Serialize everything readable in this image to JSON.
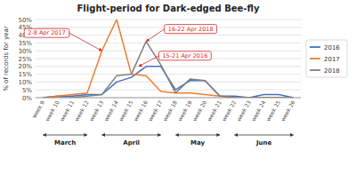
{
  "chart_data": {
    "type": "line",
    "title": "Flight-period for Dark-edged Bee-fly",
    "ylabel": "% of records for year",
    "categories": [
      "week 9",
      "week 10",
      "week 11",
      "week 12",
      "week 13",
      "week 14",
      "week 15",
      "week 16",
      "week 17",
      "week 18",
      "week 19",
      "week 20",
      "week 21",
      "week 22",
      "week 23",
      "week 24",
      "week 25",
      "week 26"
    ],
    "series": [
      {
        "name": "2016",
        "color": "#4472c4",
        "values": [
          0,
          1,
          1,
          2,
          2,
          10,
          13,
          20,
          20,
          5,
          11,
          11,
          1,
          1,
          0,
          2,
          2,
          0
        ]
      },
      {
        "name": "2017",
        "color": "#ed7d31",
        "values": [
          0,
          1,
          2,
          3,
          30,
          50,
          15,
          14,
          4,
          3,
          3,
          2,
          1,
          0,
          0,
          0,
          0,
          0
        ]
      },
      {
        "name": "2018",
        "color": "#808080",
        "values": [
          0,
          0,
          0,
          1,
          2,
          14,
          15,
          36,
          21,
          3,
          12,
          11,
          1,
          0,
          0,
          0,
          0,
          0
        ]
      }
    ],
    "ylim": [
      0,
      50
    ],
    "yticks": [
      {
        "value": 0,
        "label": "0%"
      },
      {
        "value": 5,
        "label": "5%"
      },
      {
        "value": 10,
        "label": "10%"
      },
      {
        "value": 15,
        "label": "15%"
      },
      {
        "value": 20,
        "label": "20%"
      },
      {
        "value": 25,
        "label": "25%"
      },
      {
        "value": 30,
        "label": "30%"
      },
      {
        "value": 35,
        "label": "35%"
      },
      {
        "value": 40,
        "label": "40%"
      },
      {
        "value": 45,
        "label": "45%"
      },
      {
        "value": 50,
        "label": "50%"
      }
    ],
    "grid": true,
    "legend": "right",
    "annotations": [
      {
        "text": "2-8 Apr 2017",
        "x": 4,
        "y": 30
      },
      {
        "text": "16-22 Apr 2018",
        "x": 7,
        "y": 36
      },
      {
        "text": "15-21 Apr 2016",
        "x": 6.5,
        "y": 20
      }
    ],
    "month_spans": [
      {
        "label": "March",
        "start": "week 9",
        "end": "week 12"
      },
      {
        "label": "April",
        "start": "week 13",
        "end": "week 17"
      },
      {
        "label": "May",
        "start": "week 18",
        "end": "week 21"
      },
      {
        "label": "June",
        "start": "week 22",
        "end": "week 26"
      }
    ]
  }
}
